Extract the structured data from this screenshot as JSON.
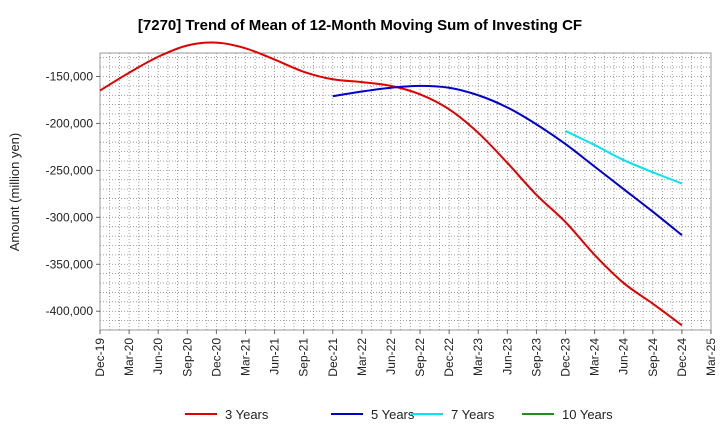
{
  "chart_data": {
    "type": "line",
    "title": "[7270]  Trend of Mean of 12-Month Moving Sum of Investing CF",
    "xlabel": "",
    "ylabel": "Amount (million yen)",
    "ylim": [
      -420000,
      -125000
    ],
    "yticks": [
      -150000,
      -200000,
      -250000,
      -300000,
      -350000,
      -400000
    ],
    "ytick_labels": [
      "-150,000",
      "-200,000",
      "-250,000",
      "-300,000",
      "-350,000",
      "-400,000"
    ],
    "categories": [
      "Dec-19",
      "Mar-20",
      "Jun-20",
      "Sep-20",
      "Dec-20",
      "Mar-21",
      "Jun-21",
      "Sep-21",
      "Dec-21",
      "Mar-22",
      "Jun-22",
      "Sep-22",
      "Dec-22",
      "Mar-23",
      "Jun-23",
      "Sep-23",
      "Dec-23",
      "Mar-24",
      "Jun-24",
      "Sep-24",
      "Dec-24",
      "Mar-25"
    ],
    "grid": true,
    "legend_position": "bottom",
    "series": [
      {
        "name": "3 Years",
        "color": "#e00000",
        "values": [
          -165000,
          -146000,
          -129000,
          -117000,
          -114000,
          -120000,
          -132000,
          -145000,
          -153000,
          -156000,
          -160000,
          -169000,
          -185000,
          -210000,
          -242000,
          -276000,
          -305000,
          -340000,
          -370000,
          -392000,
          -415000,
          null
        ]
      },
      {
        "name": "5 Years",
        "color": "#0000cc",
        "values": [
          null,
          null,
          null,
          null,
          null,
          null,
          null,
          null,
          -171000,
          -166000,
          -162000,
          -160000,
          -162000,
          -170000,
          -183000,
          -201000,
          -222000,
          -246000,
          -270000,
          -294000,
          -319000,
          null
        ]
      },
      {
        "name": "7 Years",
        "color": "#00e5ee",
        "values": [
          null,
          null,
          null,
          null,
          null,
          null,
          null,
          null,
          null,
          null,
          null,
          null,
          null,
          null,
          null,
          null,
          -208000,
          -223000,
          -239000,
          -252000,
          -264000,
          null
        ]
      },
      {
        "name": "10 Years",
        "color": "#228b22",
        "values": [
          null,
          null,
          null,
          null,
          null,
          null,
          null,
          null,
          null,
          null,
          null,
          null,
          null,
          null,
          null,
          null,
          null,
          null,
          null,
          null,
          null,
          null
        ]
      }
    ]
  }
}
